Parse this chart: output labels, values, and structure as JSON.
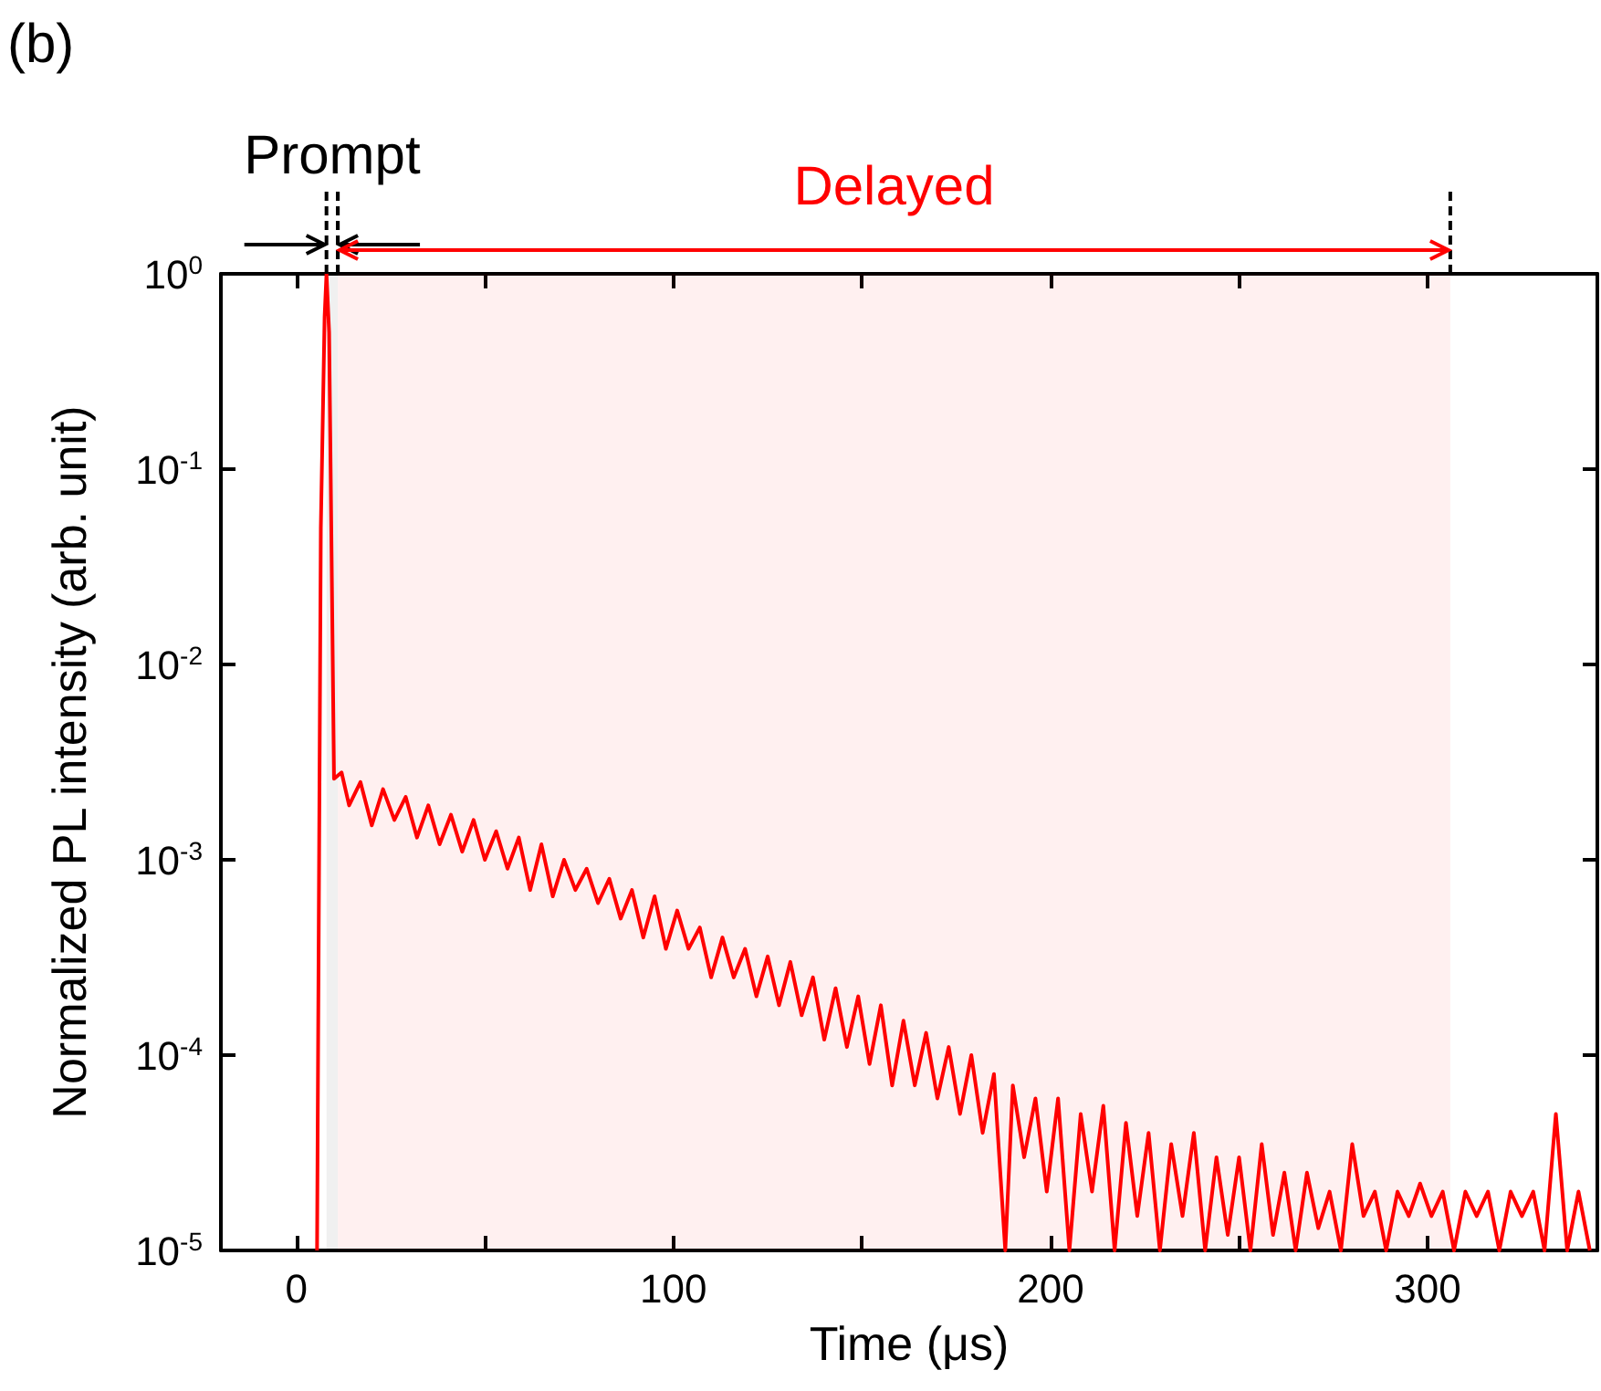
{
  "chart_data": {
    "type": "line",
    "xlabel": "Time (μs)",
    "ylabel": "Normalized PL intensity (arb. unit)",
    "annotations": [
      "(b)"
    ],
    "log": "y",
    "xlim": [
      -20,
      345
    ],
    "xticks": [
      0,
      {
        "value": 50,
        "label": null
      },
      100,
      {
        "value": 150,
        "label": null
      },
      200,
      {
        "value": 250,
        "label": null
      },
      300
    ],
    "ylim": [
      1e-05,
      1
    ],
    "yticks": [
      {
        "value": 1,
        "label": "10$^{0}$"
      },
      {
        "value": 0.1,
        "label": "10$^{-1}$"
      },
      {
        "value": 0.01,
        "label": "10$^{-2}$"
      },
      {
        "value": 0.001,
        "label": "10$^{-3}$"
      },
      {
        "value": 0.0001,
        "label": "10$^{-4}$"
      },
      {
        "value": 1e-05,
        "label": "10$^{-5}$"
      }
    ],
    "bands": [
      {
        "axis": "x",
        "from": 8,
        "to": 11,
        "label": "Prompt",
        "color": "#000000"
      },
      {
        "axis": "x",
        "from": 11,
        "to": 306,
        "label": "Delayed",
        "color": "#ff0000"
      }
    ],
    "series": [
      {
        "color": "#ff0000",
        "x": [
          5.5,
          6.5,
          7.5,
          8,
          8.7,
          9.5,
          10,
          12,
          14,
          17,
          20,
          23,
          26,
          29,
          32,
          35,
          38,
          41,
          44,
          47,
          50,
          53,
          56,
          59,
          62,
          65,
          68,
          71,
          74,
          77,
          80,
          83,
          86,
          89,
          92,
          95,
          98,
          101,
          104,
          107,
          110,
          113,
          116,
          119,
          122,
          125,
          128,
          131,
          134,
          137,
          140,
          143,
          146,
          149,
          152,
          155,
          158,
          161,
          164,
          167,
          170,
          173,
          176,
          179,
          182,
          185,
          188,
          190,
          193,
          196,
          199,
          202,
          205,
          208,
          211,
          214,
          217,
          220,
          223,
          226,
          229,
          232,
          235,
          238,
          241,
          244,
          247,
          250,
          253,
          256,
          259,
          262,
          265,
          268,
          271,
          274,
          277,
          280,
          283,
          286,
          289,
          292,
          295,
          298,
          301,
          304,
          307,
          310,
          313,
          316,
          319,
          322,
          325,
          328,
          331,
          334,
          337,
          340,
          343
        ],
        "values": [
          1e-05,
          0.05,
          0.6,
          1,
          0.5,
          0.02,
          0.0026,
          0.0028,
          0.0019,
          0.0025,
          0.0015,
          0.0023,
          0.0016,
          0.0021,
          0.0013,
          0.0019,
          0.0012,
          0.0017,
          0.0011,
          0.0016,
          0.001,
          0.0014,
          0.0009,
          0.0013,
          0.0007,
          0.0012,
          0.00065,
          0.001,
          0.0007,
          0.0009,
          0.0006,
          0.0008,
          0.0005,
          0.0007,
          0.0004,
          0.00065,
          0.00035,
          0.00055,
          0.00035,
          0.00045,
          0.00025,
          0.0004,
          0.00025,
          0.00035,
          0.0002,
          0.00032,
          0.00018,
          0.0003,
          0.00016,
          0.00025,
          0.00012,
          0.00022,
          0.00011,
          0.0002,
          9e-05,
          0.00018,
          7e-05,
          0.00015,
          7e-05,
          0.00013,
          6e-05,
          0.00011,
          5e-05,
          0.0001,
          4e-05,
          8e-05,
          1e-05,
          7e-05,
          3e-05,
          6e-05,
          2e-05,
          6e-05,
          1e-05,
          5e-05,
          2e-05,
          5.5e-05,
          1e-05,
          4.5e-05,
          1.5e-05,
          4e-05,
          1e-05,
          3.5e-05,
          1.5e-05,
          4e-05,
          1e-05,
          3e-05,
          1.2e-05,
          3e-05,
          1e-05,
          3.5e-05,
          1.2e-05,
          2.5e-05,
          1e-05,
          2.5e-05,
          1.3e-05,
          2e-05,
          1e-05,
          3.5e-05,
          1.5e-05,
          2e-05,
          1e-05,
          2e-05,
          1.5e-05,
          2.2e-05,
          1.5e-05,
          2e-05,
          1e-05,
          2e-05,
          1.5e-05,
          2e-05,
          1e-05,
          2e-05,
          1.5e-05,
          2e-05,
          1e-05,
          5e-05,
          1e-05,
          2e-05,
          1e-05
        ]
      }
    ]
  }
}
